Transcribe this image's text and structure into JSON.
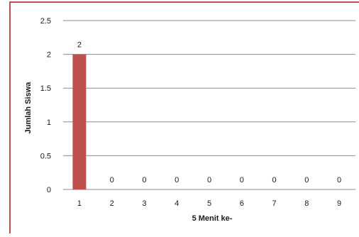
{
  "chart_data": {
    "type": "bar",
    "title": "",
    "xlabel": "5 Menit ke-",
    "ylabel": "Jumlah Siswa",
    "categories": [
      "1",
      "2",
      "3",
      "4",
      "5",
      "6",
      "7",
      "8",
      "9"
    ],
    "values": [
      2,
      0,
      0,
      0,
      0,
      0,
      0,
      0,
      0
    ],
    "data_labels": [
      "2",
      "0",
      "0",
      "0",
      "0",
      "0",
      "0",
      "0",
      "0"
    ],
    "yticks": [
      "0",
      "0.5",
      "1",
      "1.5",
      "2",
      "2.5"
    ],
    "ytick_values": [
      0,
      0.5,
      1,
      1.5,
      2,
      2.5
    ],
    "ylim": [
      0,
      2.5
    ],
    "grid": true,
    "legend": "none",
    "colors": {
      "bar": "#c0504d",
      "frame": "#c0504d",
      "grid": "#8c8c8c"
    }
  }
}
